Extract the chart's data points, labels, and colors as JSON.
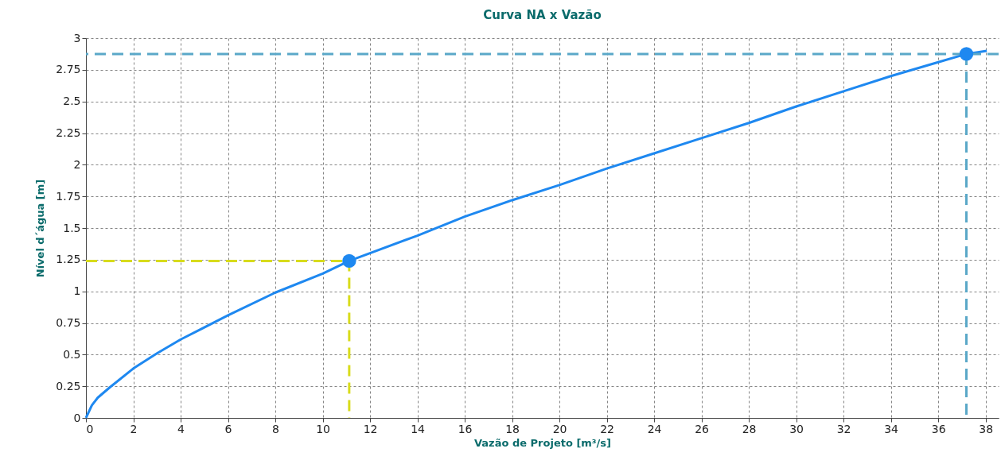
{
  "chart_data": {
    "type": "line",
    "title": "Curva NA x Vazão",
    "xlabel": "Vazão de Projeto [m³/s]",
    "ylabel": "Nível d´água [m]",
    "xlim": [
      0,
      38.55
    ],
    "xticks": [
      0,
      2,
      4,
      6,
      8,
      10,
      12,
      14,
      16,
      18,
      20,
      22,
      24,
      26,
      28,
      30,
      32,
      34,
      36,
      38
    ],
    "ylim": [
      0,
      3
    ],
    "yticks": [
      0,
      0.25,
      0.5,
      0.75,
      1,
      1.25,
      1.5,
      1.75,
      2,
      2.25,
      2.5,
      2.75,
      3
    ],
    "grid": true,
    "series": [
      {
        "type": "line",
        "color": "#1e88f0",
        "marker": "none",
        "line_style": "solid",
        "x": [
          0,
          0.25,
          0.5,
          1,
          2,
          3,
          4,
          6,
          8,
          10,
          11.12,
          14,
          16,
          18,
          20,
          22,
          24,
          26,
          28,
          30,
          32,
          34,
          36,
          37.19,
          38.05
        ],
        "values": [
          0,
          0.1,
          0.16,
          0.24,
          0.39,
          0.51,
          0.62,
          0.81,
          0.99,
          1.14,
          1.24,
          1.44,
          1.59,
          1.72,
          1.84,
          1.97,
          2.09,
          2.21,
          2.33,
          2.46,
          2.58,
          2.7,
          2.81,
          2.875,
          2.9
        ]
      },
      {
        "type": "line",
        "color": "#d8dc1c",
        "marker": "none",
        "line_style": "dashed",
        "x": [
          0,
          11.12,
          11.12
        ],
        "values": [
          1.24,
          1.24,
          0
        ]
      },
      {
        "type": "line",
        "color": "#5aa8c8",
        "marker": "none",
        "line_style": "dashed",
        "x": [
          37.19,
          37.19
        ],
        "values": [
          2.875,
          0
        ]
      },
      {
        "type": "scatter",
        "color": "#1e88f0",
        "marker": "circle",
        "x": [
          11.12,
          37.19
        ],
        "values": [
          1.24,
          2.875
        ]
      }
    ],
    "ref_lines": [
      {
        "axis": "y",
        "value": 2.875,
        "color": "#5aa8c8",
        "line_style": "dashed"
      }
    ]
  }
}
